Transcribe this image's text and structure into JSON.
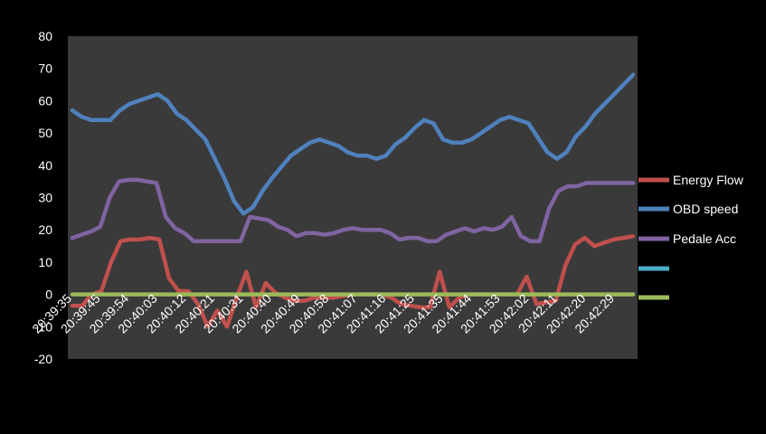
{
  "chart_data": {
    "type": "line",
    "title": "",
    "xlabel": "",
    "ylabel": "",
    "ylim": [
      -20,
      80
    ],
    "yticks": [
      -20,
      -10,
      0,
      10,
      20,
      30,
      40,
      50,
      60,
      70,
      80
    ],
    "grid": false,
    "legend": "right",
    "plot_background": "#3a3a3a",
    "page_background": "#000000",
    "xtick_labels": [
      "20:39:35",
      "20:39:45",
      "20:39:54",
      "20:40:03",
      "20:40:12",
      "20:40:21",
      "20:40:31",
      "20:40:40",
      "20:40:49",
      "20:40:58",
      "20:41:07",
      "20:41:16",
      "20:41:25",
      "20:41:35",
      "20:41:44",
      "20:41:53",
      "20:42:02",
      "20:42:11",
      "20:42:20",
      "20:42:29"
    ],
    "series": [
      {
        "name": "Energy Flow",
        "color": "#c0504d",
        "values": [
          -3.5,
          -3.5,
          0,
          1,
          10,
          16.5,
          17,
          17,
          17.5,
          17,
          5,
          1,
          1,
          -3,
          -10,
          -5,
          -10,
          -1,
          7,
          -4,
          3.5,
          0.5,
          -1,
          -2,
          -2,
          -1,
          -1,
          -1,
          -0.5,
          0,
          0,
          0,
          0,
          -1,
          -3,
          -3.5,
          -4,
          -4,
          7,
          -4,
          -1,
          0,
          0,
          0,
          0,
          0,
          0,
          5.5,
          -3,
          -2.5,
          -2,
          9,
          15.5,
          17.5,
          15,
          16,
          17,
          17.5,
          18
        ]
      },
      {
        "name": "OBD speed",
        "color": "#4f81bd",
        "values": [
          57,
          55,
          54,
          54,
          54,
          57,
          59,
          60,
          61,
          62,
          60,
          56,
          54,
          51,
          48,
          42,
          36,
          29,
          25,
          27,
          32,
          36,
          39.5,
          43,
          45,
          47,
          48,
          47,
          46,
          44,
          43,
          43,
          42,
          43,
          46.5,
          48.5,
          51.5,
          54,
          53,
          48,
          47,
          47,
          48,
          50,
          52,
          54,
          55,
          54,
          53,
          48.5,
          44,
          42,
          44,
          49,
          52,
          56,
          59,
          62,
          65,
          68
        ]
      },
      {
        "name": "Pedale Acc",
        "color": "#8064a2",
        "values": [
          17.5,
          18.5,
          19.5,
          21,
          30,
          35,
          35.5,
          35.5,
          35,
          34.5,
          24,
          20.5,
          19,
          16.5,
          16.5,
          16.5,
          16.5,
          16.5,
          16.5,
          24,
          23.5,
          23,
          21,
          20,
          18,
          19,
          19,
          18.5,
          19,
          20,
          20.5,
          20,
          20,
          20,
          19,
          17,
          17.5,
          17.5,
          16.5,
          16.5,
          18.5,
          19.5,
          20.5,
          19.5,
          20.5,
          20,
          21,
          24,
          18,
          16.5,
          16.5,
          26.5,
          32,
          33.5,
          33.5,
          34.5,
          34.5,
          34.5,
          34.5,
          34.5,
          34.5
        ]
      },
      {
        "name": "",
        "color": "#4bacc6",
        "values": [
          0
        ]
      },
      {
        "name": "",
        "color": "#9bbb59",
        "values": [
          0,
          0,
          0,
          0,
          0,
          0,
          0,
          0,
          0,
          0,
          0,
          0,
          0,
          0,
          0,
          0,
          0,
          0,
          0,
          0,
          0,
          0,
          0,
          0,
          0,
          0,
          0,
          0,
          0,
          0,
          0,
          0,
          0,
          0,
          0,
          0,
          0,
          0,
          0,
          0,
          0,
          0,
          0,
          0,
          0,
          0,
          0,
          0,
          0,
          0,
          0,
          0,
          0,
          0,
          0,
          0,
          0,
          0,
          0
        ]
      }
    ]
  }
}
